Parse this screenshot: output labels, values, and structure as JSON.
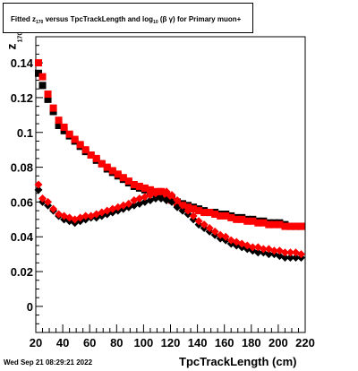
{
  "title": {
    "pre": "Fitted  z",
    "sub1": "170",
    "mid": "  versus TpcTrackLength and log",
    "sub2": "10",
    "post": " (β  γ) for Primary muon+"
  },
  "footer": "Wed Sep 21 08:29:21 2022",
  "axes": {
    "xlabel": "TpcTrackLength (cm)",
    "ylabel_main": "z",
    "ylabel_sub": "170"
  },
  "chart_data": {
    "type": "scatter",
    "title": "Fitted z170 versus TpcTrackLength and log10 (β γ) for Primary muon+",
    "xlabel": "TpcTrackLength (cm)",
    "ylabel": "z170",
    "xlim": [
      20,
      220
    ],
    "ylim": [
      -0.015,
      0.155
    ],
    "xticks": [
      20,
      40,
      60,
      80,
      100,
      120,
      140,
      160,
      180,
      200,
      220
    ],
    "yticks": [
      0,
      0.02,
      0.04,
      0.06,
      0.08,
      0.1,
      0.12,
      0.14
    ],
    "ytick_labels": [
      "0",
      "0.02",
      "0.04",
      "0.06",
      "0.08",
      "0.1",
      "0.12",
      "0.14"
    ],
    "grid": false,
    "series": [
      {
        "color": "#000000",
        "marker": "square",
        "points": [
          [
            22,
            0.134
          ],
          [
            25,
            0.127
          ],
          [
            29,
            0.119
          ],
          [
            33,
            0.112
          ],
          [
            37,
            0.104
          ],
          [
            41,
            0.101
          ],
          [
            45,
            0.098
          ],
          [
            49,
            0.095
          ],
          [
            53,
            0.092
          ],
          [
            57,
            0.089
          ],
          [
            61,
            0.087
          ],
          [
            65,
            0.084
          ],
          [
            69,
            0.082
          ],
          [
            73,
            0.079
          ],
          [
            77,
            0.077
          ],
          [
            81,
            0.075
          ],
          [
            85,
            0.073
          ],
          [
            89,
            0.071
          ],
          [
            93,
            0.069
          ],
          [
            97,
            0.068
          ],
          [
            101,
            0.067
          ],
          [
            105,
            0.066
          ],
          [
            109,
            0.065
          ],
          [
            113,
            0.064
          ],
          [
            117,
            0.063
          ],
          [
            121,
            0.062
          ],
          [
            125,
            0.06
          ],
          [
            129,
            0.059
          ],
          [
            133,
            0.058
          ],
          [
            137,
            0.057
          ],
          [
            141,
            0.056
          ],
          [
            145,
            0.055
          ],
          [
            149,
            0.054
          ],
          [
            153,
            0.054
          ],
          [
            157,
            0.053
          ],
          [
            161,
            0.053
          ],
          [
            165,
            0.052
          ],
          [
            169,
            0.051
          ],
          [
            173,
            0.051
          ],
          [
            177,
            0.05
          ],
          [
            181,
            0.05
          ],
          [
            185,
            0.049
          ],
          [
            189,
            0.049
          ],
          [
            193,
            0.048
          ],
          [
            197,
            0.048
          ],
          [
            201,
            0.048
          ],
          [
            205,
            0.047
          ],
          [
            209,
            0.046
          ],
          [
            213,
            0.046
          ],
          [
            217,
            0.046
          ]
        ]
      },
      {
        "color": "#ff0000",
        "marker": "square",
        "points": [
          [
            22,
            0.14
          ],
          [
            25,
            0.132
          ],
          [
            29,
            0.122
          ],
          [
            33,
            0.114
          ],
          [
            37,
            0.107
          ],
          [
            41,
            0.103
          ],
          [
            45,
            0.099
          ],
          [
            49,
            0.096
          ],
          [
            53,
            0.093
          ],
          [
            57,
            0.09
          ],
          [
            61,
            0.087
          ],
          [
            65,
            0.085
          ],
          [
            69,
            0.082
          ],
          [
            73,
            0.08
          ],
          [
            77,
            0.078
          ],
          [
            81,
            0.076
          ],
          [
            85,
            0.074
          ],
          [
            89,
            0.072
          ],
          [
            93,
            0.07
          ],
          [
            97,
            0.069
          ],
          [
            101,
            0.068
          ],
          [
            105,
            0.067
          ],
          [
            109,
            0.066
          ],
          [
            113,
            0.066
          ],
          [
            117,
            0.064
          ],
          [
            121,
            0.061
          ],
          [
            125,
            0.059
          ],
          [
            129,
            0.058
          ],
          [
            133,
            0.057
          ],
          [
            137,
            0.056
          ],
          [
            141,
            0.055
          ],
          [
            145,
            0.054
          ],
          [
            149,
            0.054
          ],
          [
            153,
            0.053
          ],
          [
            157,
            0.052
          ],
          [
            161,
            0.052
          ],
          [
            165,
            0.051
          ],
          [
            169,
            0.05
          ],
          [
            173,
            0.05
          ],
          [
            177,
            0.049
          ],
          [
            181,
            0.049
          ],
          [
            185,
            0.048
          ],
          [
            189,
            0.048
          ],
          [
            193,
            0.047
          ],
          [
            197,
            0.047
          ],
          [
            201,
            0.047
          ],
          [
            205,
            0.046
          ],
          [
            209,
            0.046
          ],
          [
            213,
            0.046
          ],
          [
            217,
            0.046
          ]
        ]
      },
      {
        "color": "#000000",
        "marker": "diamond",
        "points": [
          [
            22,
            0.067
          ],
          [
            25,
            0.06
          ],
          [
            29,
            0.058
          ],
          [
            33,
            0.055
          ],
          [
            37,
            0.052
          ],
          [
            41,
            0.05
          ],
          [
            45,
            0.049
          ],
          [
            49,
            0.048
          ],
          [
            53,
            0.049
          ],
          [
            57,
            0.05
          ],
          [
            61,
            0.051
          ],
          [
            65,
            0.051
          ],
          [
            69,
            0.052
          ],
          [
            73,
            0.053
          ],
          [
            77,
            0.054
          ],
          [
            81,
            0.055
          ],
          [
            85,
            0.056
          ],
          [
            89,
            0.057
          ],
          [
            93,
            0.058
          ],
          [
            97,
            0.059
          ],
          [
            101,
            0.06
          ],
          [
            105,
            0.061
          ],
          [
            109,
            0.062
          ],
          [
            113,
            0.062
          ],
          [
            117,
            0.061
          ],
          [
            121,
            0.06
          ],
          [
            125,
            0.057
          ],
          [
            129,
            0.055
          ],
          [
            133,
            0.053
          ],
          [
            137,
            0.05
          ],
          [
            141,
            0.047
          ],
          [
            145,
            0.045
          ],
          [
            149,
            0.043
          ],
          [
            153,
            0.041
          ],
          [
            157,
            0.039
          ],
          [
            161,
            0.038
          ],
          [
            165,
            0.036
          ],
          [
            169,
            0.035
          ],
          [
            173,
            0.034
          ],
          [
            177,
            0.033
          ],
          [
            181,
            0.032
          ],
          [
            185,
            0.031
          ],
          [
            189,
            0.031
          ],
          [
            193,
            0.03
          ],
          [
            197,
            0.03
          ],
          [
            201,
            0.029
          ],
          [
            205,
            0.028
          ],
          [
            209,
            0.028
          ],
          [
            213,
            0.028
          ],
          [
            217,
            0.028
          ]
        ]
      },
      {
        "color": "#ff0000",
        "marker": "diamond",
        "points": [
          [
            22,
            0.07
          ],
          [
            25,
            0.062
          ],
          [
            29,
            0.06
          ],
          [
            33,
            0.056
          ],
          [
            37,
            0.053
          ],
          [
            41,
            0.052
          ],
          [
            45,
            0.051
          ],
          [
            49,
            0.05
          ],
          [
            53,
            0.051
          ],
          [
            57,
            0.052
          ],
          [
            61,
            0.052
          ],
          [
            65,
            0.053
          ],
          [
            69,
            0.054
          ],
          [
            73,
            0.055
          ],
          [
            77,
            0.056
          ],
          [
            81,
            0.057
          ],
          [
            85,
            0.058
          ],
          [
            89,
            0.059
          ],
          [
            93,
            0.061
          ],
          [
            97,
            0.062
          ],
          [
            101,
            0.063
          ],
          [
            105,
            0.064
          ],
          [
            109,
            0.065
          ],
          [
            113,
            0.066
          ],
          [
            117,
            0.066
          ],
          [
            121,
            0.064
          ],
          [
            125,
            0.061
          ],
          [
            129,
            0.058
          ],
          [
            133,
            0.055
          ],
          [
            137,
            0.052
          ],
          [
            141,
            0.049
          ],
          [
            145,
            0.047
          ],
          [
            149,
            0.045
          ],
          [
            153,
            0.043
          ],
          [
            157,
            0.041
          ],
          [
            161,
            0.04
          ],
          [
            165,
            0.038
          ],
          [
            169,
            0.037
          ],
          [
            173,
            0.036
          ],
          [
            177,
            0.035
          ],
          [
            181,
            0.034
          ],
          [
            185,
            0.034
          ],
          [
            189,
            0.033
          ],
          [
            193,
            0.033
          ],
          [
            197,
            0.032
          ],
          [
            201,
            0.032
          ],
          [
            205,
            0.031
          ],
          [
            209,
            0.031
          ],
          [
            213,
            0.031
          ],
          [
            217,
            0.03
          ]
        ]
      }
    ]
  }
}
